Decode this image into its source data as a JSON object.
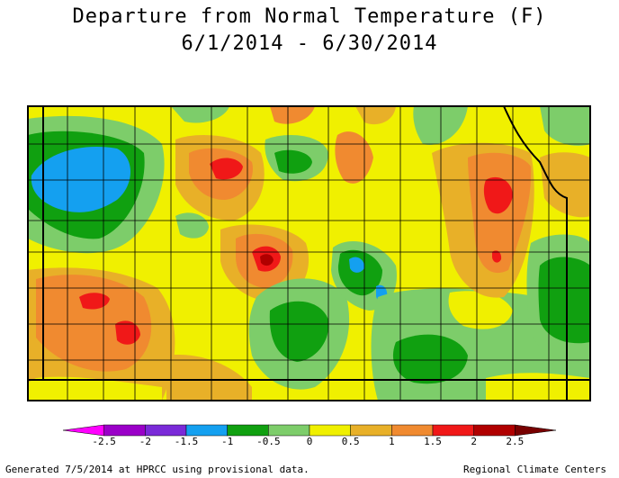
{
  "title": "Departure from Normal Temperature (F)",
  "subtitle": "6/1/2014 - 6/30/2014",
  "colors": {
    "m25": "#ff00ff",
    "m2": "#9a00c8",
    "m15": "#7a2ad8",
    "m1": "#14a0f0",
    "m05": "#10a010",
    "z": "#7dcd6a",
    "p05": "#f0f000",
    "p1": "#e8b028",
    "p15": "#f08a30",
    "p2": "#f01818",
    "p25": "#b00000",
    "p3": "#780000"
  },
  "legend": {
    "ticks": [
      "-2.5",
      "-2",
      "-1.5",
      "-1",
      "-0.5",
      "0",
      "0.5",
      "1",
      "1.5",
      "2",
      "2.5"
    ],
    "bins": [
      "m25",
      "m2",
      "m15",
      "m1",
      "m05",
      "z",
      "p05",
      "p1",
      "p15",
      "p2",
      "p25",
      "p3"
    ]
  },
  "footer": {
    "left": "Generated 7/5/2014 at HPRCC using provisional data.",
    "right": "Regional Climate Centers"
  }
}
